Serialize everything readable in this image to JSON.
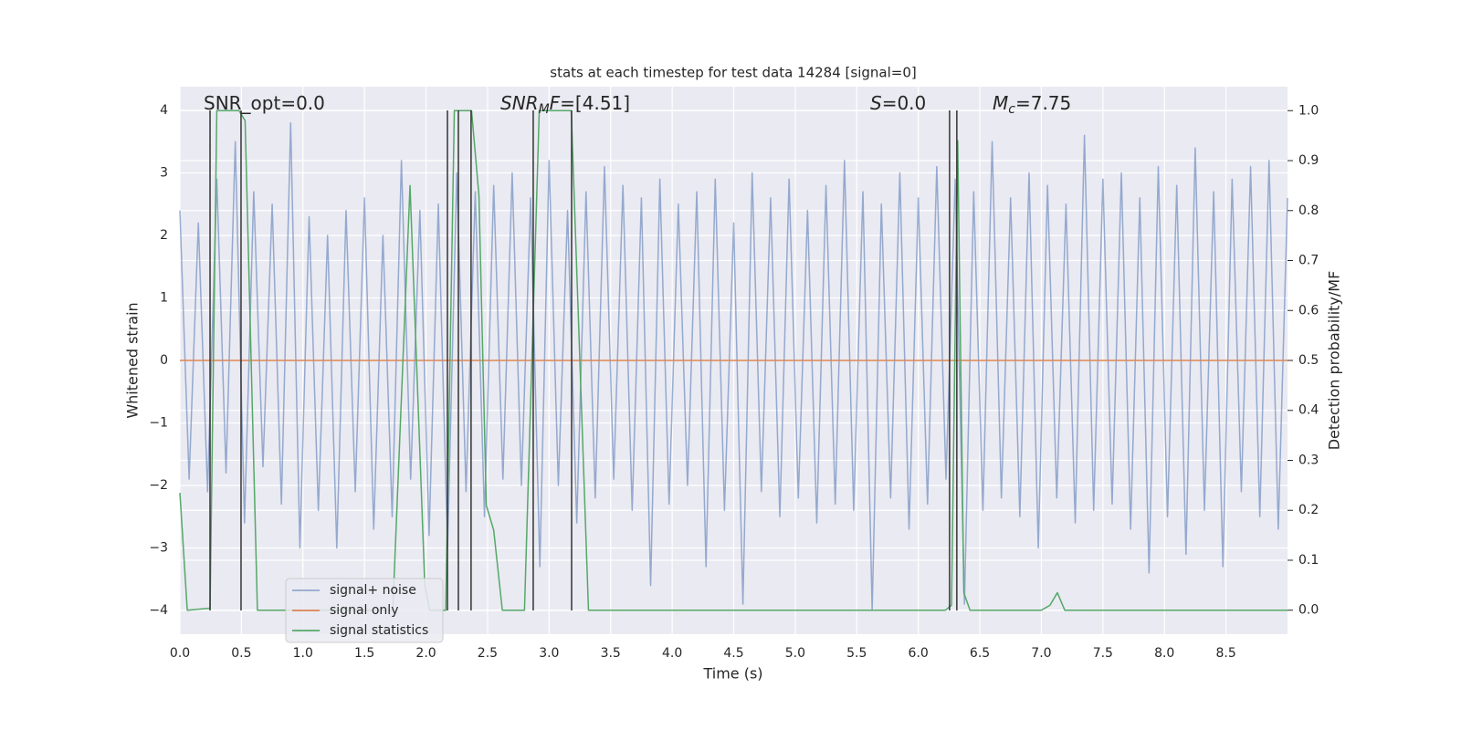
{
  "chart_data": {
    "type": "line",
    "title": "stats at each timestep for test data 14284 [signal=0]",
    "xlabel": "Time (s)",
    "ylabel": "Whitened strain",
    "y2label": "Detection probability/MF",
    "xlim": [
      0,
      9.0
    ],
    "ylim": [
      -4.38,
      4.38
    ],
    "y2lim": [
      -0.048,
      1.048
    ],
    "xticks": [
      {
        "value": 0,
        "label": "0.0"
      },
      0.5,
      {
        "value": 1,
        "label": "1.0"
      },
      1.5,
      {
        "value": 2,
        "label": "2.0"
      },
      2.5,
      {
        "value": 3,
        "label": "3.0"
      },
      3.5,
      {
        "value": 4,
        "label": "4.0"
      },
      4.5,
      {
        "value": 5,
        "label": "5.0"
      },
      5.5,
      {
        "value": 6,
        "label": "6.0"
      },
      6.5,
      {
        "value": 7,
        "label": "7.0"
      },
      7.5,
      {
        "value": 8,
        "label": "8.0"
      },
      8.5
    ],
    "yticks": [
      {
        "value": -4,
        "label": "−4"
      },
      {
        "value": -3,
        "label": "−3"
      },
      {
        "value": -2,
        "label": "−2"
      },
      {
        "value": -1,
        "label": "−1"
      },
      0,
      1,
      2,
      3,
      4
    ],
    "y2ticks": [
      {
        "value": 0,
        "label": "0.0"
      },
      0.1,
      0.2,
      0.3,
      0.4,
      0.5,
      0.6,
      0.7,
      0.8,
      0.9,
      {
        "value": 1,
        "label": "1.0"
      }
    ],
    "grid": true,
    "series": [
      {
        "name": "signal+ noise",
        "color": "#4c72b0",
        "x": [
          0,
          0.075,
          0.15,
          0.225,
          0.3,
          0.375,
          0.45,
          0.525,
          0.6,
          0.675,
          0.75,
          0.825,
          0.9,
          0.975,
          1.05,
          1.125,
          1.2,
          1.275,
          1.35,
          1.425,
          1.5,
          1.575,
          1.65,
          1.725,
          1.8,
          1.875,
          1.95,
          2.025,
          2.1,
          2.175,
          2.25,
          2.325,
          2.4,
          2.475,
          2.55,
          2.625,
          2.7,
          2.775,
          2.85,
          2.925,
          3.0,
          3.075,
          3.15,
          3.225,
          3.3,
          3.375,
          3.45,
          3.525,
          3.6,
          3.675,
          3.75,
          3.825,
          3.9,
          3.975,
          4.05,
          4.125,
          4.2,
          4.275,
          4.35,
          4.425,
          4.5,
          4.575,
          4.65,
          4.725,
          4.8,
          4.875,
          4.95,
          5.025,
          5.1,
          5.175,
          5.25,
          5.325,
          5.4,
          5.475,
          5.55,
          5.625,
          5.7,
          5.775,
          5.85,
          5.925,
          6.0,
          6.075,
          6.15,
          6.225,
          6.3,
          6.375,
          6.45,
          6.525,
          6.6,
          6.675,
          6.75,
          6.825,
          6.9,
          6.975,
          7.05,
          7.125,
          7.2,
          7.275,
          7.35,
          7.425,
          7.5,
          7.575,
          7.65,
          7.725,
          7.8,
          7.875,
          7.95,
          8.025,
          8.1,
          8.175,
          8.25,
          8.325,
          8.4,
          8.475,
          8.55,
          8.625,
          8.7,
          8.775,
          8.85,
          8.925,
          9.0
        ],
        "values": [
          2.4,
          -1.9,
          2.2,
          -2.1,
          2.9,
          -1.8,
          3.5,
          -2.6,
          2.7,
          -1.7,
          2.5,
          -2.3,
          3.8,
          -3.0,
          2.3,
          -2.4,
          2.0,
          -3.0,
          2.4,
          -2.1,
          2.6,
          -2.7,
          2.0,
          -2.5,
          3.2,
          -1.9,
          2.4,
          -2.8,
          2.5,
          -3.0,
          3.0,
          -2.1,
          2.7,
          -2.5,
          2.8,
          -1.9,
          3.0,
          -2.0,
          2.6,
          -3.3,
          3.2,
          -2.0,
          2.4,
          -2.6,
          2.7,
          -2.2,
          3.1,
          -1.9,
          2.8,
          -2.4,
          2.6,
          -3.6,
          2.9,
          -2.3,
          2.5,
          -2.0,
          2.7,
          -3.3,
          2.9,
          -2.4,
          2.2,
          -3.9,
          3.0,
          -2.1,
          2.6,
          -2.5,
          2.9,
          -2.2,
          2.4,
          -2.6,
          2.8,
          -2.3,
          3.2,
          -2.4,
          2.7,
          -4.0,
          2.5,
          -2.2,
          3.0,
          -2.7,
          2.6,
          -2.3,
          3.1,
          -1.9,
          2.9,
          -3.9,
          2.7,
          -2.4,
          3.5,
          -2.2,
          2.6,
          -2.5,
          3.0,
          -3.0,
          2.8,
          -2.2,
          2.5,
          -2.6,
          3.6,
          -2.4,
          2.9,
          -2.3,
          3.0,
          -2.7,
          2.6,
          -3.4,
          3.1,
          -2.5,
          2.8,
          -3.1,
          3.4,
          -2.4,
          2.7,
          -3.3,
          2.9,
          -2.1,
          3.1,
          -2.5,
          3.2,
          -2.7,
          2.6
        ]
      },
      {
        "name": "signal only",
        "color": "#dd8452",
        "x": [
          0,
          9.0
        ],
        "values": [
          0,
          0
        ]
      },
      {
        "name": "signal statistics",
        "color": "#55a868",
        "axis": "y2",
        "x": [
          0,
          0.06,
          0.245,
          0.3,
          0.48,
          0.53,
          0.63,
          0.69,
          1.73,
          1.87,
          1.99,
          2.03,
          2.16,
          2.23,
          2.37,
          2.43,
          2.49,
          2.55,
          2.62,
          2.8,
          2.92,
          3.18,
          3.32,
          3.73,
          6.22,
          6.27,
          6.32,
          6.37,
          6.42,
          7.0,
          7.07,
          7.13,
          7.19,
          9.0
        ],
        "values": [
          0.235,
          0,
          0.004,
          1.0,
          1.0,
          0.98,
          0,
          0,
          0,
          0.85,
          0.05,
          0,
          0,
          1.0,
          1.0,
          0.83,
          0.21,
          0.16,
          0,
          0,
          1.0,
          1.0,
          0,
          0,
          0,
          0.01,
          0.94,
          0.035,
          0,
          0,
          0.01,
          0.035,
          0,
          0
        ]
      }
    ],
    "vlines": {
      "x": [
        0.245,
        0.497,
        2.174,
        2.263,
        2.366,
        2.871,
        3.183,
        6.254,
        6.313
      ],
      "ymin": -4,
      "ymax": 4,
      "color": "#333333"
    },
    "annotations": [
      {
        "parts": [
          {
            "text": "SNR_opt=0.0"
          }
        ]
      },
      {
        "parts": [
          {
            "text": "SNR",
            "style": "italic"
          },
          {
            "text": "M",
            "style": "sub"
          },
          {
            "text": "F",
            "style": "italic"
          },
          {
            "text": "=[4.51]"
          }
        ]
      },
      {
        "parts": [
          {
            "text": "S",
            "style": "italic"
          },
          {
            "text": "=0.0"
          }
        ]
      },
      {
        "parts": [
          {
            "text": "M",
            "style": "italic"
          },
          {
            "text": "c",
            "style": "sub"
          },
          {
            "text": "=7.75"
          }
        ]
      }
    ]
  }
}
